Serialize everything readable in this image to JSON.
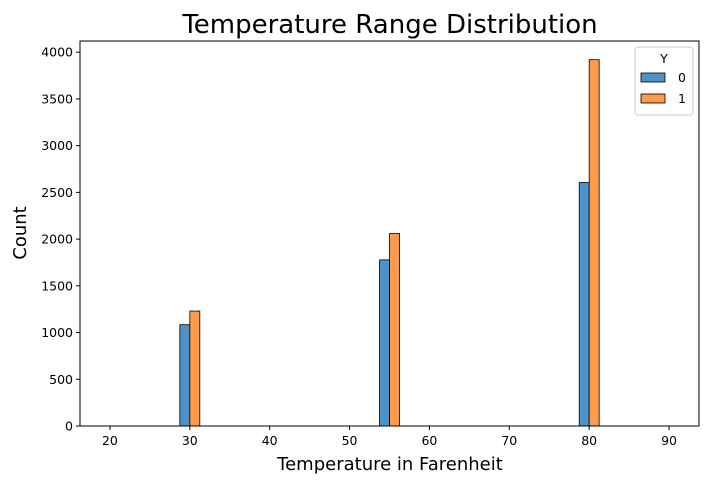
{
  "chart_data": {
    "type": "bar",
    "title": "Temperature Range Distribution",
    "xlabel": "Temperature in Farenheit",
    "ylabel": "Count",
    "xlim": [
      16.25,
      93.75
    ],
    "ylim": [
      0,
      4120
    ],
    "xticks": [
      20,
      30,
      40,
      50,
      60,
      70,
      80,
      90
    ],
    "yticks": [
      0,
      500,
      1000,
      1500,
      2000,
      2500,
      3000,
      3500,
      4000
    ],
    "categories": [
      30,
      55,
      80
    ],
    "bin_width": 2.5,
    "legend": {
      "title": "Y",
      "placement": "top-right"
    },
    "series": [
      {
        "name": "0",
        "color": "#4d92c8",
        "values": [
          1084,
          1778,
          2606
        ]
      },
      {
        "name": "1",
        "color": "#fd9a4c",
        "values": [
          1230,
          2060,
          3920
        ]
      }
    ],
    "grid": false
  }
}
